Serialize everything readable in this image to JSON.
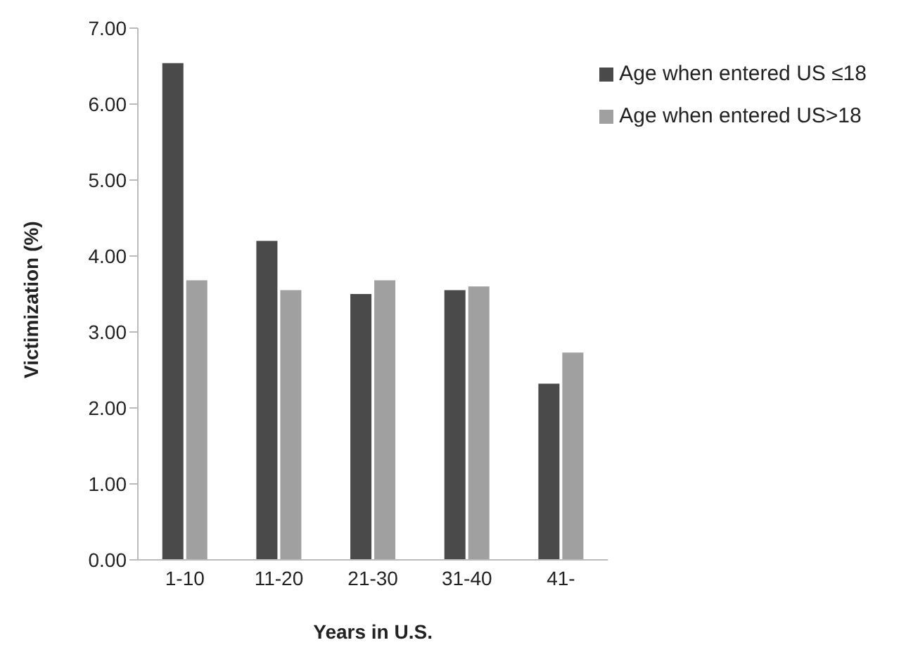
{
  "chart_data": {
    "type": "bar",
    "xlabel": "Years in U.S.",
    "ylabel": "Victimization (%)",
    "categories": [
      "1-10",
      "11-20",
      "21-30",
      "31-40",
      "41-"
    ],
    "series": [
      {
        "name": "Age when entered US ≤18",
        "color": "#4a4a4a",
        "values": [
          6.54,
          4.2,
          3.5,
          3.55,
          2.32
        ]
      },
      {
        "name": "Age when entered US>18",
        "color": "#a0a0a0",
        "values": [
          3.68,
          3.55,
          3.68,
          3.6,
          2.73
        ]
      }
    ],
    "ylim": [
      0,
      7
    ],
    "yticks": [
      {
        "value": 0,
        "label": "0.00"
      },
      {
        "value": 1,
        "label": "1.00"
      },
      {
        "value": 2,
        "label": "2.00"
      },
      {
        "value": 3,
        "label": "3.00"
      },
      {
        "value": 4,
        "label": "4.00"
      },
      {
        "value": 5,
        "label": "5.00"
      },
      {
        "value": 6,
        "label": "6.00"
      },
      {
        "value": 7,
        "label": "7.00"
      }
    ],
    "grid": false,
    "legend": "top right"
  }
}
